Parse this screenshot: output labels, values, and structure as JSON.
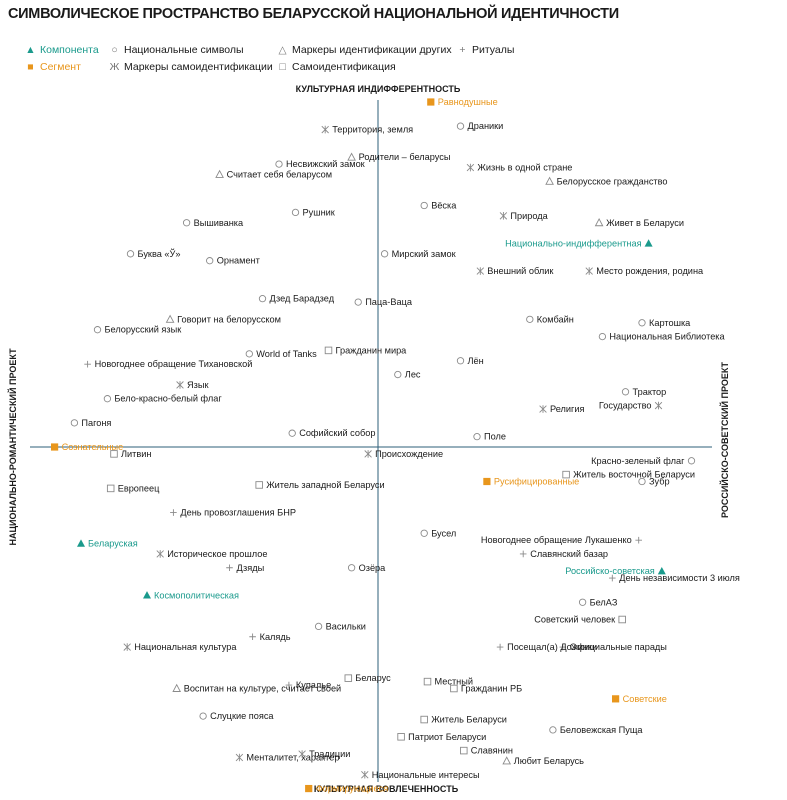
{
  "title": "СИМВОЛИЧЕСКОЕ ПРОСТРАНСТВО БЕЛАРУССКОЙ НАЦИОНАЛЬНОЙ ИДЕНТИЧНОСТИ",
  "legend": [
    {
      "symbol": "▲",
      "label": "Компонента",
      "color": "teal"
    },
    {
      "symbol": "■",
      "label": "Сегмент",
      "color": "orange"
    },
    {
      "symbol": "○",
      "label": "Национальные символы",
      "color": "gray"
    },
    {
      "symbol": "Ж",
      "label": "Маркеры самоидентификации",
      "color": "gray"
    },
    {
      "symbol": "△",
      "label": "Маркеры идентификации других",
      "color": "gray"
    },
    {
      "symbol": "□",
      "label": "Самоидентификация",
      "color": "gray"
    },
    {
      "symbol": "+",
      "label": "Ритуалы",
      "color": "gray"
    }
  ],
  "axes": {
    "top": "КУЛЬТУРНАЯ ИНДИФФЕРЕНТНОСТЬ",
    "bottom": "КУЛЬТУРНАЯ ВОВЛЕЧЕННОСТЬ",
    "left": "НАЦИОНАЛЬНО-РОМАНТИЧЕСКИЙ ПРОЕКТ",
    "right": "РОССИЙСКО-СОВЕТСКИЙ ПРОЕКТ"
  },
  "colors": {
    "teal": "#1a9a8c",
    "orange": "#e8961c",
    "marker": "#8a8a8a",
    "axis": "#2e5f7a"
  },
  "chart_data": {
    "type": "scatter",
    "x_axis": {
      "negative": "НАЦИОНАЛЬНО-РОМАНТИЧЕСКИЙ ПРОЕКТ",
      "positive": "РОССИЙСКО-СОВЕТСКИЙ ПРОЕКТ"
    },
    "y_axis": {
      "positive": "КУЛЬТУРНАЯ ИНДИФФЕРЕНТНОСТЬ",
      "negative": "КУЛЬТУРНАЯ ВОВЛЕЧЕННОСТЬ"
    },
    "xlim": [
      -1,
      1
    ],
    "ylim": [
      -1,
      1
    ],
    "categories": [
      {
        "key": "component",
        "name": "Компонента",
        "marker": "triangle-filled",
        "color": "#1a9a8c"
      },
      {
        "key": "segment",
        "name": "Сегмент",
        "marker": "square-filled",
        "color": "#e8961c"
      },
      {
        "key": "symbol",
        "name": "Национальные символы",
        "marker": "circle"
      },
      {
        "key": "self_marker",
        "name": "Маркеры самоидентификации",
        "marker": "zhe"
      },
      {
        "key": "other_marker",
        "name": "Маркеры идентификации других",
        "marker": "triangle"
      },
      {
        "key": "self_id",
        "name": "Самоидентификация",
        "marker": "square"
      },
      {
        "key": "ritual",
        "name": "Ритуалы",
        "marker": "plus"
      }
    ],
    "points": [
      {
        "label": "Равнодушные",
        "category": "segment",
        "x": 0.16,
        "y": 1.0
      },
      {
        "label": "Драники",
        "category": "symbol",
        "x": 0.25,
        "y": 0.93
      },
      {
        "label": "Территория, земля",
        "category": "self_marker",
        "x": -0.16,
        "y": 0.92
      },
      {
        "label": "Родители – беларусы",
        "category": "other_marker",
        "x": -0.08,
        "y": 0.84
      },
      {
        "label": "Несвижский замок",
        "category": "symbol",
        "x": -0.3,
        "y": 0.82
      },
      {
        "label": "Жизнь в одной стране",
        "category": "self_marker",
        "x": 0.28,
        "y": 0.81
      },
      {
        "label": "Считает себя беларусом",
        "category": "other_marker",
        "x": -0.48,
        "y": 0.79
      },
      {
        "label": "Белорусское гражданство",
        "category": "other_marker",
        "x": 0.52,
        "y": 0.77
      },
      {
        "label": "Вёска",
        "category": "symbol",
        "x": 0.14,
        "y": 0.7
      },
      {
        "label": "Рушник",
        "category": "symbol",
        "x": -0.25,
        "y": 0.68
      },
      {
        "label": "Природа",
        "category": "self_marker",
        "x": 0.38,
        "y": 0.67
      },
      {
        "label": "Вышиванка",
        "category": "symbol",
        "x": -0.58,
        "y": 0.65
      },
      {
        "label": "Живет в Беларуси",
        "category": "other_marker",
        "x": 0.67,
        "y": 0.65
      },
      {
        "label": "Национально-индифферентная",
        "category": "component",
        "x": 0.82,
        "y": 0.59
      },
      {
        "label": "Мирский замок",
        "category": "symbol",
        "x": 0.02,
        "y": 0.56
      },
      {
        "label": "Буква «Ў»",
        "category": "symbol",
        "x": -0.75,
        "y": 0.56
      },
      {
        "label": "Орнамент",
        "category": "symbol",
        "x": -0.51,
        "y": 0.54
      },
      {
        "label": "Внешний облик",
        "category": "self_marker",
        "x": 0.31,
        "y": 0.51
      },
      {
        "label": "Место рождения, родина",
        "category": "self_marker",
        "x": 0.64,
        "y": 0.51
      },
      {
        "label": "Паца-Ваца",
        "category": "symbol",
        "x": -0.06,
        "y": 0.42
      },
      {
        "label": "Дзед Барадзед",
        "category": "symbol",
        "x": -0.35,
        "y": 0.43
      },
      {
        "label": "Говорит на белорусском",
        "category": "other_marker",
        "x": -0.63,
        "y": 0.37
      },
      {
        "label": "Комбайн",
        "category": "symbol",
        "x": 0.46,
        "y": 0.37
      },
      {
        "label": "Картошка",
        "category": "symbol",
        "x": 0.8,
        "y": 0.36
      },
      {
        "label": "Белорусский язык",
        "category": "symbol",
        "x": -0.85,
        "y": 0.34
      },
      {
        "label": "Национальная Библиотека",
        "category": "symbol",
        "x": 0.68,
        "y": 0.32
      },
      {
        "label": "World of Tanks",
        "category": "symbol",
        "x": -0.39,
        "y": 0.27
      },
      {
        "label": "Гражданин мира",
        "category": "self_id",
        "x": -0.15,
        "y": 0.28
      },
      {
        "label": "Лён",
        "category": "symbol",
        "x": 0.25,
        "y": 0.25
      },
      {
        "label": "Новогоднее обращение Тихановской",
        "category": "ritual",
        "x": -0.88,
        "y": 0.24
      },
      {
        "label": "Лес",
        "category": "symbol",
        "x": 0.06,
        "y": 0.21
      },
      {
        "label": "Язык",
        "category": "self_marker",
        "x": -0.6,
        "y": 0.18
      },
      {
        "label": "Трактор",
        "category": "symbol",
        "x": 0.75,
        "y": 0.16
      },
      {
        "label": "Бело-красно-белый флаг",
        "category": "symbol",
        "x": -0.82,
        "y": 0.14
      },
      {
        "label": "Религия",
        "category": "self_marker",
        "x": 0.5,
        "y": 0.11
      },
      {
        "label": "Государство",
        "category": "self_marker",
        "x": 0.85,
        "y": 0.12
      },
      {
        "label": "Пагоня",
        "category": "symbol",
        "x": -0.92,
        "y": 0.07
      },
      {
        "label": "Софийский собор",
        "category": "symbol",
        "x": -0.26,
        "y": 0.04
      },
      {
        "label": "Поле",
        "category": "symbol",
        "x": 0.3,
        "y": 0.03
      },
      {
        "label": "Сознательные",
        "category": "segment",
        "x": -0.98,
        "y": 0.0
      },
      {
        "label": "Литвин",
        "category": "self_id",
        "x": -0.8,
        "y": -0.02
      },
      {
        "label": "Происхождение",
        "category": "self_marker",
        "x": -0.03,
        "y": -0.02
      },
      {
        "label": "Красно-зеленый флаг",
        "category": "symbol",
        "x": 0.95,
        "y": -0.04
      },
      {
        "label": "Житель восточной Беларуси",
        "category": "self_id",
        "x": 0.57,
        "y": -0.08
      },
      {
        "label": "Русифицированные",
        "category": "segment",
        "x": 0.33,
        "y": -0.1
      },
      {
        "label": "Зубр",
        "category": "symbol",
        "x": 0.8,
        "y": -0.1
      },
      {
        "label": "Житель западной Беларуси",
        "category": "self_id",
        "x": -0.36,
        "y": -0.11
      },
      {
        "label": "Европеец",
        "category": "self_id",
        "x": -0.81,
        "y": -0.12
      },
      {
        "label": "День провозглашения БНР",
        "category": "ritual",
        "x": -0.62,
        "y": -0.19
      },
      {
        "label": "Бусел",
        "category": "symbol",
        "x": 0.14,
        "y": -0.25
      },
      {
        "label": "Новогоднее обращение Лукашенко",
        "category": "ritual",
        "x": 0.79,
        "y": -0.27
      },
      {
        "label": "Беларуская",
        "category": "component",
        "x": -0.9,
        "y": -0.28
      },
      {
        "label": "Славянский базар",
        "category": "ritual",
        "x": 0.44,
        "y": -0.31
      },
      {
        "label": "Историческое прошлое",
        "category": "self_marker",
        "x": -0.66,
        "y": -0.31
      },
      {
        "label": "Российско-советская",
        "category": "component",
        "x": 0.86,
        "y": -0.36
      },
      {
        "label": "Дзяды",
        "category": "ritual",
        "x": -0.45,
        "y": -0.35
      },
      {
        "label": "Озёра",
        "category": "symbol",
        "x": -0.08,
        "y": -0.35
      },
      {
        "label": "День независимости 3 июля",
        "category": "ritual",
        "x": 0.71,
        "y": -0.38
      },
      {
        "label": "Космополитическая",
        "category": "component",
        "x": -0.7,
        "y": -0.43
      },
      {
        "label": "БелАЗ",
        "category": "symbol",
        "x": 0.62,
        "y": -0.45
      },
      {
        "label": "Советский человек",
        "category": "self_id",
        "x": 0.74,
        "y": -0.5
      },
      {
        "label": "Васильки",
        "category": "symbol",
        "x": -0.18,
        "y": -0.52
      },
      {
        "label": "Калядь",
        "category": "ritual",
        "x": -0.38,
        "y": -0.55
      },
      {
        "label": "Национальная культура",
        "category": "self_marker",
        "x": -0.76,
        "y": -0.58
      },
      {
        "label": "Официальные парады",
        "category": "ritual",
        "x": 0.56,
        "y": -0.58
      },
      {
        "label": "Посещал(а) Дожинки",
        "category": "ritual",
        "x": 0.37,
        "y": -0.58
      },
      {
        "label": "Местный",
        "category": "self_id",
        "x": 0.15,
        "y": -0.68
      },
      {
        "label": "Гражданин РБ",
        "category": "self_id",
        "x": 0.23,
        "y": -0.7
      },
      {
        "label": "Беларус",
        "category": "self_id",
        "x": -0.09,
        "y": -0.67
      },
      {
        "label": "Купалье",
        "category": "ritual",
        "x": -0.27,
        "y": -0.69
      },
      {
        "label": "Советские",
        "category": "segment",
        "x": 0.72,
        "y": -0.73
      },
      {
        "label": "Воспитан на культуре, считает своей",
        "category": "other_marker",
        "x": -0.61,
        "y": -0.7
      },
      {
        "label": "Слуцкие пояса",
        "category": "symbol",
        "x": -0.53,
        "y": -0.78
      },
      {
        "label": "Житель Беларуси",
        "category": "self_id",
        "x": 0.14,
        "y": -0.79
      },
      {
        "label": "Беловежская Пуща",
        "category": "symbol",
        "x": 0.53,
        "y": -0.82
      },
      {
        "label": "Патриот Беларуси",
        "category": "self_id",
        "x": 0.07,
        "y": -0.84
      },
      {
        "label": "Менталитет, характер",
        "category": "self_marker",
        "x": -0.42,
        "y": -0.9
      },
      {
        "label": "Традиции",
        "category": "self_marker",
        "x": -0.23,
        "y": -0.89
      },
      {
        "label": "Славянин",
        "category": "self_id",
        "x": 0.26,
        "y": -0.88
      },
      {
        "label": "Любит Беларусь",
        "category": "other_marker",
        "x": 0.39,
        "y": -0.91
      },
      {
        "label": "Национальные интересы",
        "category": "self_marker",
        "x": -0.04,
        "y": -0.95
      },
      {
        "label": "Формирующиеся",
        "category": "segment",
        "x": -0.21,
        "y": -0.99
      }
    ]
  }
}
